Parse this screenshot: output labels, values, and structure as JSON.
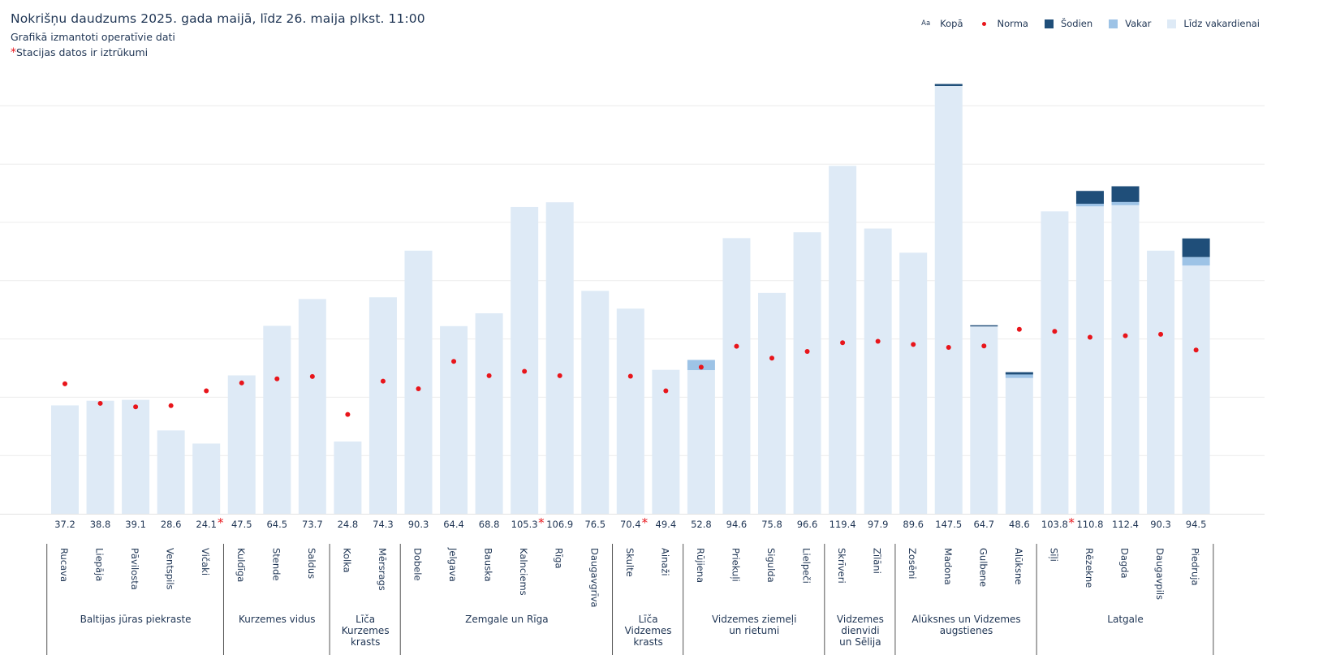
{
  "header": {
    "title": "Nokrišņu daudzums 2025. gada maijā, līdz 26. maija plkst. 11:00",
    "subtitle": "Grafikā izmantoti operatīvie dati",
    "note_star": "*",
    "note": "Stacijas datos ir iztrūkumi"
  },
  "legend": [
    {
      "label": "Kopā",
      "symbol": "Aa",
      "color": "#1f3554"
    },
    {
      "label": "Norma",
      "symbol": "dot",
      "color": "#e8151b"
    },
    {
      "label": "Šodien",
      "symbol": "square",
      "color": "#1f4e79"
    },
    {
      "label": "Vakar",
      "symbol": "square",
      "color": "#9dc3e6"
    },
    {
      "label": "Līdz vakardienai",
      "symbol": "square",
      "color": "#deeaf6"
    }
  ],
  "chart_data": {
    "type": "bar",
    "stacked": true,
    "ylim": [
      0,
      150
    ],
    "ytick_step": 20,
    "grid": true,
    "missing_data_marker": "*",
    "colors": {
      "until_yesterday": "#deeaf6",
      "yesterday": "#9dc3e6",
      "today": "#1f4e79",
      "norm": "#e8151b",
      "text": "#1f3554"
    },
    "stations": [
      {
        "name": "Rucava",
        "total": "37.2",
        "until_yesterday": 37.2,
        "yesterday": 0,
        "today": 0,
        "norm": 44.6,
        "missing": false
      },
      {
        "name": "Liepāja",
        "total": "38.8",
        "until_yesterday": 38.8,
        "yesterday": 0,
        "today": 0,
        "norm": 37.9,
        "missing": false
      },
      {
        "name": "Pāvilosta",
        "total": "39.1",
        "until_yesterday": 39.1,
        "yesterday": 0,
        "today": 0,
        "norm": 36.7,
        "missing": false
      },
      {
        "name": "Ventspils",
        "total": "28.6",
        "until_yesterday": 28.6,
        "yesterday": 0,
        "today": 0,
        "norm": 37.1,
        "missing": false
      },
      {
        "name": "Vičaki",
        "total": "24.1",
        "until_yesterday": 24.1,
        "yesterday": 0,
        "today": 0,
        "norm": 42.2,
        "missing": true
      },
      {
        "name": "Kuldīga",
        "total": "47.5",
        "until_yesterday": 47.5,
        "yesterday": 0,
        "today": 0,
        "norm": 44.9,
        "missing": false
      },
      {
        "name": "Stende",
        "total": "64.5",
        "until_yesterday": 64.5,
        "yesterday": 0,
        "today": 0,
        "norm": 46.3,
        "missing": false
      },
      {
        "name": "Saldus",
        "total": "73.7",
        "until_yesterday": 73.7,
        "yesterday": 0,
        "today": 0,
        "norm": 47.1,
        "missing": false
      },
      {
        "name": "Kolka",
        "total": "24.8",
        "until_yesterday": 24.8,
        "yesterday": 0,
        "today": 0,
        "norm": 34.1,
        "missing": false
      },
      {
        "name": "Mērsrags",
        "total": "74.3",
        "until_yesterday": 74.3,
        "yesterday": 0,
        "today": 0,
        "norm": 45.5,
        "missing": false
      },
      {
        "name": "Dobele",
        "total": "90.3",
        "until_yesterday": 90.3,
        "yesterday": 0,
        "today": 0,
        "norm": 42.9,
        "missing": false
      },
      {
        "name": "Jelgava",
        "total": "64.4",
        "until_yesterday": 64.4,
        "yesterday": 0,
        "today": 0,
        "norm": 52.3,
        "missing": false
      },
      {
        "name": "Bauska",
        "total": "68.8",
        "until_yesterday": 68.8,
        "yesterday": 0,
        "today": 0,
        "norm": 47.4,
        "missing": false
      },
      {
        "name": "Kalnciems",
        "total": "105.3",
        "until_yesterday": 105.3,
        "yesterday": 0,
        "today": 0,
        "norm": 48.9,
        "missing": true
      },
      {
        "name": "Rīga",
        "total": "106.9",
        "until_yesterday": 106.9,
        "yesterday": 0,
        "today": 0,
        "norm": 47.4,
        "missing": false
      },
      {
        "name": "Daugavgrīva",
        "total": "76.5",
        "until_yesterday": 76.5,
        "yesterday": 0,
        "today": 0,
        "norm": 0,
        "missing": false
      },
      {
        "name": "Skulte",
        "total": "70.4",
        "until_yesterday": 70.4,
        "yesterday": 0,
        "today": 0,
        "norm": 47.2,
        "missing": true
      },
      {
        "name": "Ainaži",
        "total": "49.4",
        "until_yesterday": 49.4,
        "yesterday": 0,
        "today": 0,
        "norm": 42.2,
        "missing": false
      },
      {
        "name": "Rūjiena",
        "total": "52.8",
        "until_yesterday": 49.3,
        "yesterday": 3.5,
        "today": 0,
        "norm": 50.3,
        "missing": false
      },
      {
        "name": "Priekuļi",
        "total": "94.6",
        "until_yesterday": 94.6,
        "yesterday": 0,
        "today": 0,
        "norm": 57.5,
        "missing": false
      },
      {
        "name": "Sigulda",
        "total": "75.8",
        "until_yesterday": 75.8,
        "yesterday": 0,
        "today": 0,
        "norm": 53.4,
        "missing": false
      },
      {
        "name": "Lielpeči",
        "total": "96.6",
        "until_yesterday": 96.6,
        "yesterday": 0,
        "today": 0,
        "norm": 55.7,
        "missing": false
      },
      {
        "name": "Skrīveri",
        "total": "119.4",
        "until_yesterday": 119.4,
        "yesterday": 0,
        "today": 0,
        "norm": 58.7,
        "missing": false
      },
      {
        "name": "Zīlāni",
        "total": "97.9",
        "until_yesterday": 97.9,
        "yesterday": 0,
        "today": 0,
        "norm": 59.2,
        "missing": false
      },
      {
        "name": "Zosēni",
        "total": "89.6",
        "until_yesterday": 89.6,
        "yesterday": 0,
        "today": 0,
        "norm": 58.1,
        "missing": false
      },
      {
        "name": "Madona",
        "total": "147.5",
        "until_yesterday": 146.8,
        "yesterday": 0,
        "today": 0.7,
        "norm": 57.1,
        "missing": false
      },
      {
        "name": "Gulbene",
        "total": "64.7",
        "until_yesterday": 64.3,
        "yesterday": 0,
        "today": 0.4,
        "norm": 57.6,
        "missing": false
      },
      {
        "name": "Alūksne",
        "total": "48.6",
        "until_yesterday": 46.6,
        "yesterday": 1.2,
        "today": 0.8,
        "norm": 63.3,
        "missing": false
      },
      {
        "name": "Sīļi",
        "total": "103.8",
        "until_yesterday": 103.8,
        "yesterday": 0,
        "today": 0,
        "norm": 62.6,
        "missing": true
      },
      {
        "name": "Rēzekne",
        "total": "110.8",
        "until_yesterday": 105.5,
        "yesterday": 0.9,
        "today": 4.4,
        "norm": 60.6,
        "missing": false
      },
      {
        "name": "Dagda",
        "total": "112.4",
        "until_yesterday": 105.9,
        "yesterday": 1.1,
        "today": 5.4,
        "norm": 61.1,
        "missing": false
      },
      {
        "name": "Daugavpils",
        "total": "90.3",
        "until_yesterday": 90.3,
        "yesterday": 0,
        "today": 0,
        "norm": 61.6,
        "missing": false
      },
      {
        "name": "Piedruja",
        "total": "94.5",
        "until_yesterday": 85.2,
        "yesterday": 2.9,
        "today": 6.4,
        "norm": 56.2,
        "missing": false
      }
    ],
    "regions": [
      {
        "name": "Baltijas jūras piekraste",
        "start": 0,
        "end": 4
      },
      {
        "name": "Kurzemes vidus",
        "start": 5,
        "end": 7
      },
      {
        "name": "Līča\nKurzemes\nkrasts",
        "start": 8,
        "end": 9
      },
      {
        "name": "Zemgale un Rīga",
        "start": 10,
        "end": 15
      },
      {
        "name": "Līča\nVidzemes\nkrasts",
        "start": 16,
        "end": 17
      },
      {
        "name": "Vidzemes ziemeļi\nun rietumi",
        "start": 18,
        "end": 21
      },
      {
        "name": "Vidzemes\ndienvidi\nun Sēlija",
        "start": 22,
        "end": 23
      },
      {
        "name": "Alūksnes un Vidzemes\naugstienes",
        "start": 24,
        "end": 27
      },
      {
        "name": "Latgale",
        "start": 28,
        "end": 32
      }
    ]
  }
}
